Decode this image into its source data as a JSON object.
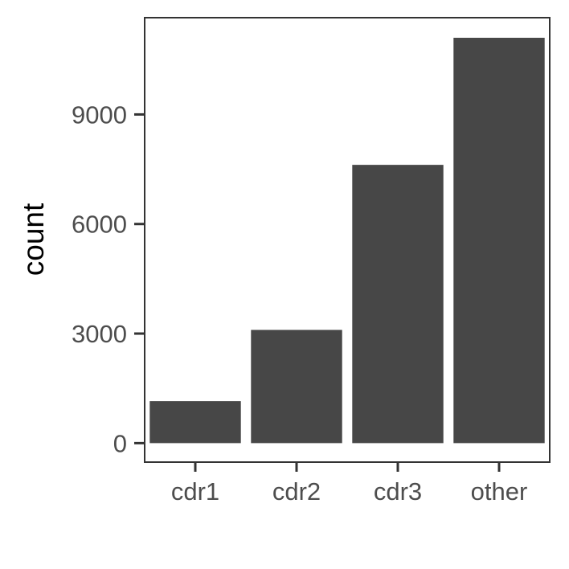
{
  "chart_data": {
    "type": "bar",
    "title": "",
    "xlabel": "",
    "ylabel": "count",
    "categories": [
      "cdr1",
      "cdr2",
      "cdr3",
      "other"
    ],
    "values": [
      1150,
      3100,
      7620,
      11100
    ],
    "ylim": [
      -520,
      11650
    ],
    "yticks": [
      0,
      3000,
      6000,
      9000
    ],
    "ytick_labels": [
      "0",
      "3000",
      "6000",
      "9000"
    ],
    "bar_color": "#474747",
    "grid": false,
    "legend": "none"
  }
}
